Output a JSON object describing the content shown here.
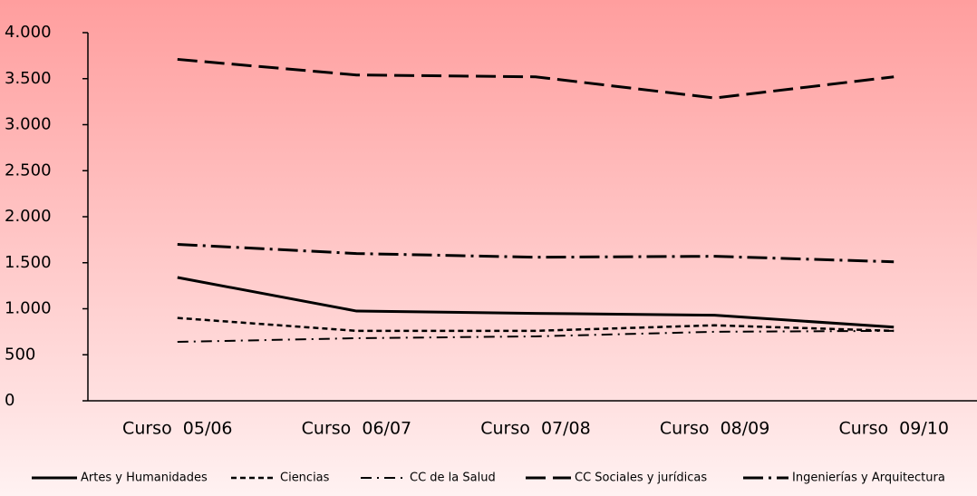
{
  "chart_data": {
    "type": "line",
    "categories": [
      "Curso  05/06",
      "Curso  06/07",
      "Curso  07/08",
      "Curso  08/09",
      "Curso  09/10"
    ],
    "series": [
      {
        "name": "Artes y Humanidades",
        "color": "#000000",
        "dash": "none",
        "values": [
          1340,
          975,
          950,
          930,
          800
        ]
      },
      {
        "name": "Ciencias",
        "color": "#000000",
        "dash": "6,4",
        "values": [
          900,
          760,
          760,
          820,
          760
        ]
      },
      {
        "name": "CC de la Salud",
        "color": "#000000",
        "dash": "12,6,2,6",
        "values": [
          640,
          680,
          700,
          750,
          760
        ]
      },
      {
        "name": "CC Sociales y jurídicas",
        "color": "#000000",
        "dash": "22,8",
        "values": [
          3710,
          3540,
          3520,
          3290,
          3520
        ]
      },
      {
        "name": "Ingenierías y Arquitectura",
        "color": "#000000",
        "dash": "22,6,3,6",
        "values": [
          1700,
          1600,
          1560,
          1570,
          1510
        ]
      }
    ],
    "ylim": [
      0,
      4000
    ],
    "yticks": [
      0,
      500,
      {
        "value": 1000,
        "label": "1.000"
      },
      {
        "value": 1500,
        "label": "1.500"
      },
      {
        "value": 2000,
        "label": "2.000"
      },
      {
        "value": 2500,
        "label": "2.500"
      },
      {
        "value": 3000,
        "label": "3.000"
      },
      {
        "value": 3500,
        "label": "3.500"
      },
      {
        "value": 4000,
        "label": "4.000"
      }
    ],
    "grid": false,
    "legend": "bottom"
  }
}
